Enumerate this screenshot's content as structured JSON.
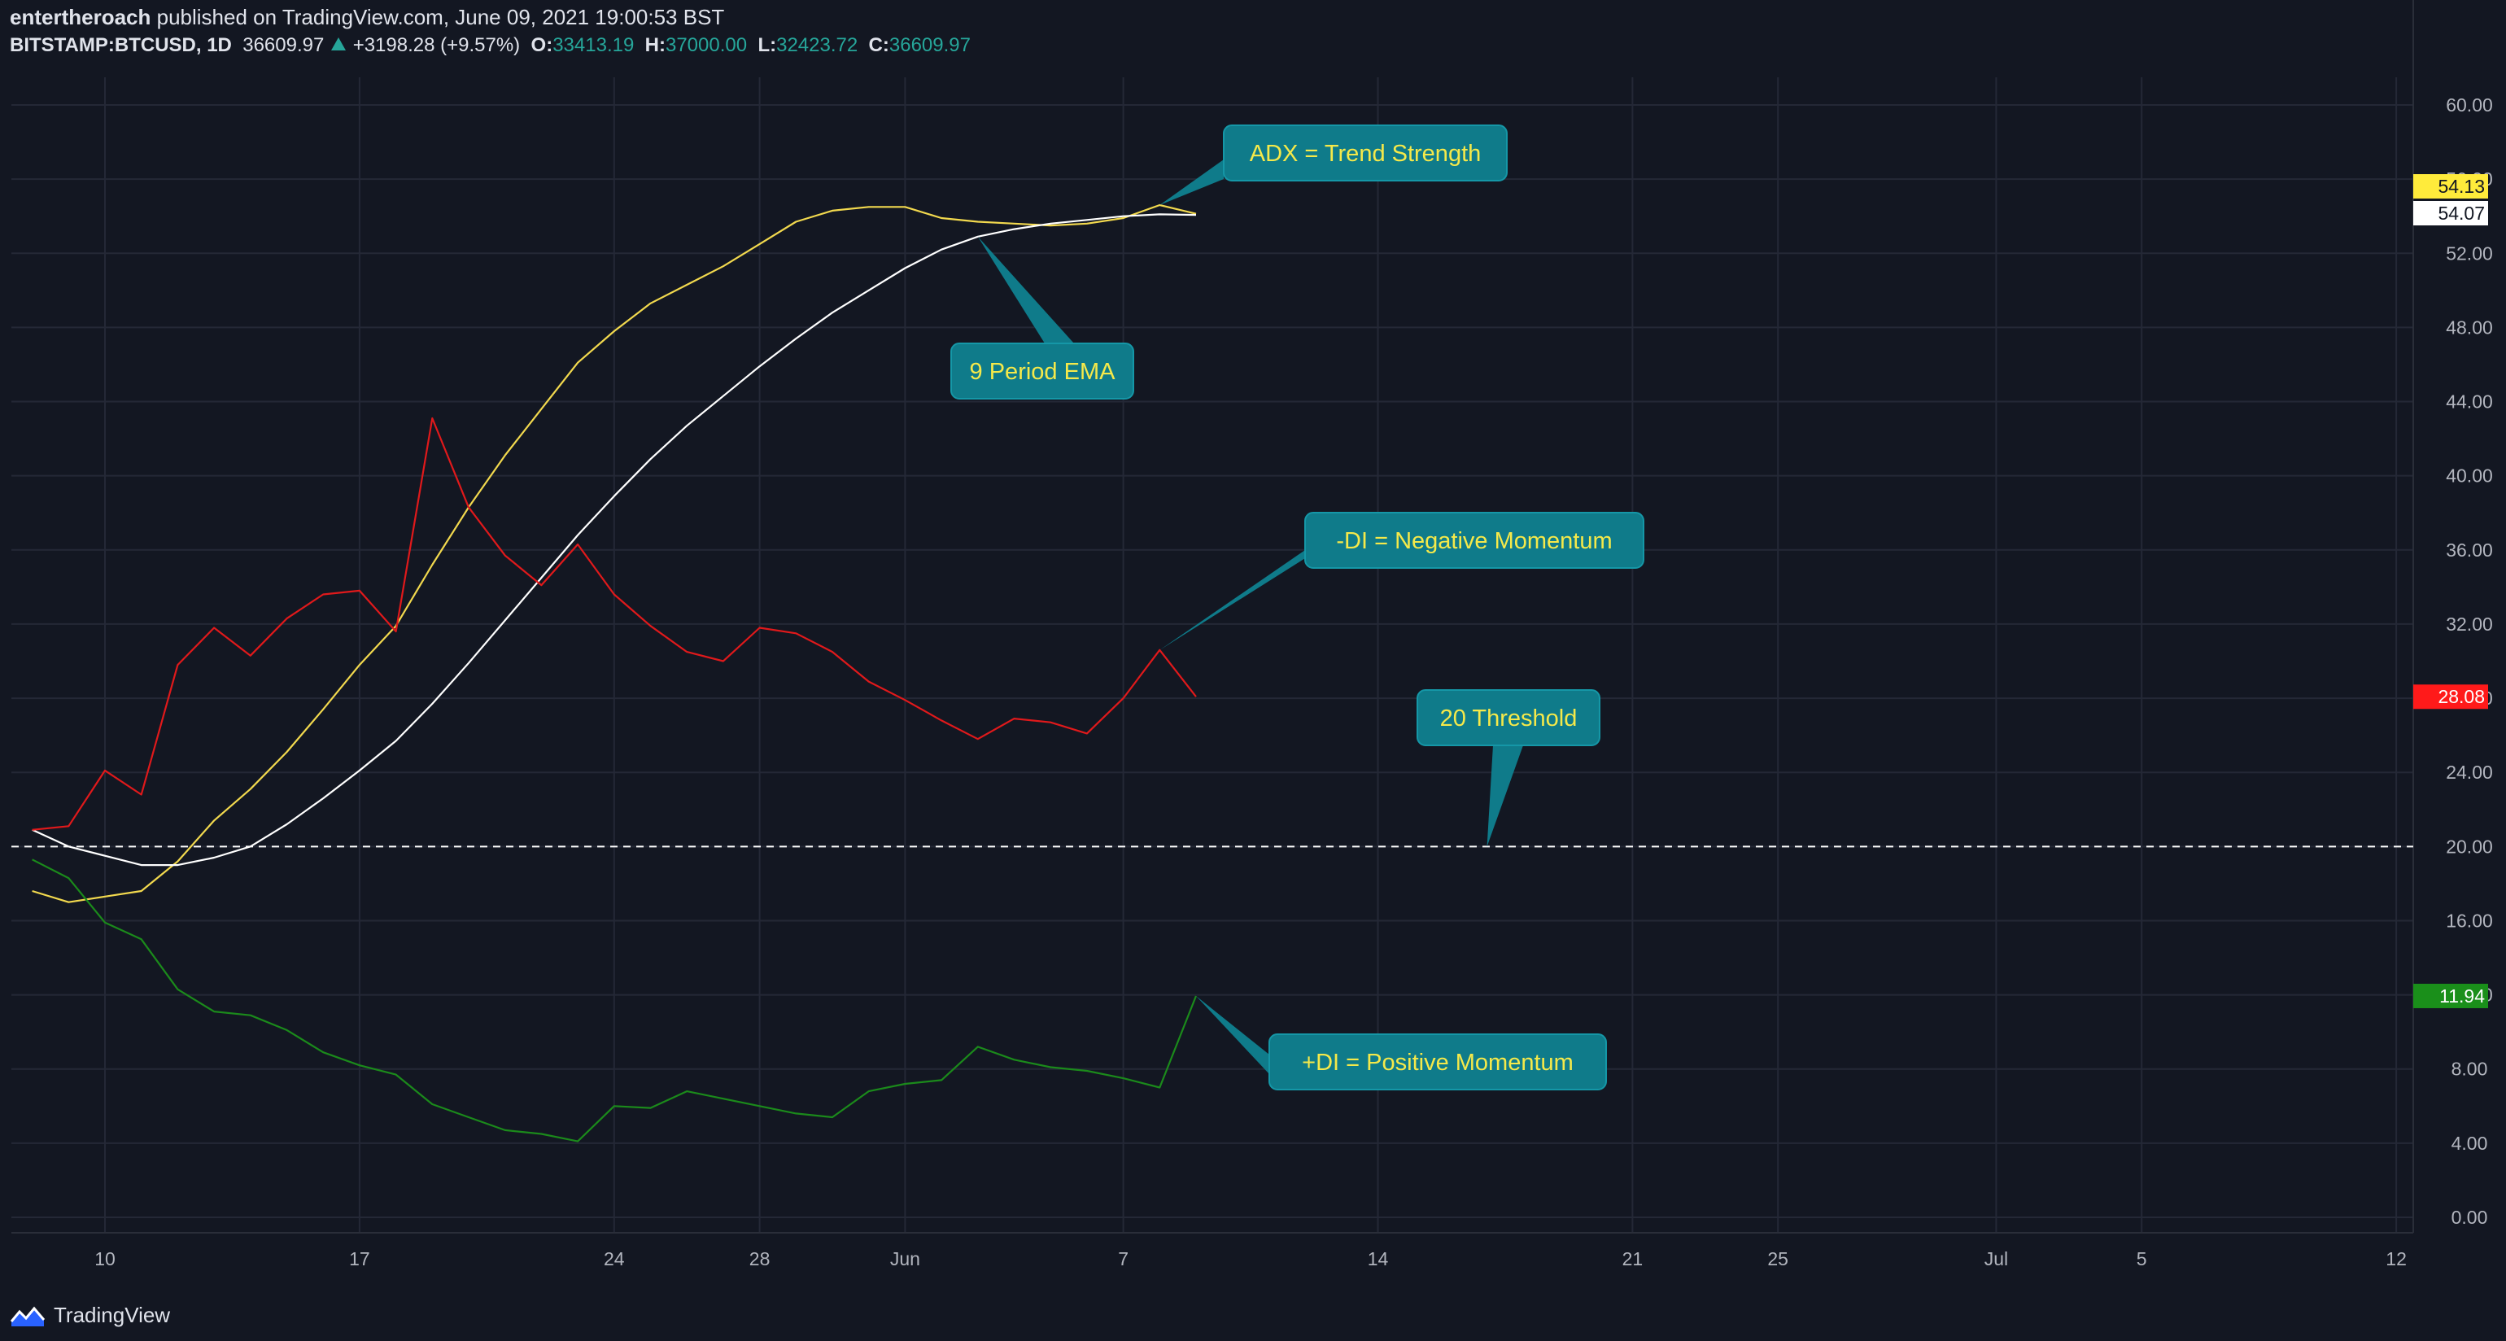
{
  "header": {
    "author": "entertheroach",
    "published_text": "published on TradingView.com, June 09, 2021 19:00:53 BST",
    "symbol": "BITSTAMP:BTCUSD, 1D",
    "last": "36609.97",
    "change": "+3198.28 (+9.57%)",
    "o_label": "O:",
    "o_value": "33413.19",
    "h_label": "H:",
    "h_value": "37000.00",
    "l_label": "L:",
    "l_value": "32423.72",
    "c_label": "C:",
    "c_value": "36609.97"
  },
  "footer": {
    "brand": "TradingView",
    "logo_icon": "tradingview-logo-icon"
  },
  "colors": {
    "background": "#131722",
    "grid": "#242836",
    "axis_text": "#b2b5be",
    "adx": "#f2d94e",
    "ema": "#ffffff",
    "minus_di": "#e0191b",
    "plus_di": "#1b8a1b",
    "threshold": "#ffffff",
    "callout_bg": "#0f7b8a",
    "callout_text": "#f5e94a",
    "badge_adx": "#ffeb3b",
    "badge_ema": "#ffffff",
    "badge_minus": "#ff1a1a",
    "badge_plus": "#1a8f1a"
  },
  "chart_data": {
    "type": "line",
    "x_tick_labels": [
      "10",
      "17",
      "24",
      "28",
      "Jun",
      "7",
      "14",
      "21",
      "25",
      "Jul",
      "5",
      "12"
    ],
    "x_tick_dates": [
      "2021-05-10",
      "2021-05-17",
      "2021-05-24",
      "2021-05-28",
      "2021-06-01",
      "2021-06-07",
      "2021-06-14",
      "2021-06-21",
      "2021-06-25",
      "2021-07-01",
      "2021-07-05",
      "2021-07-12"
    ],
    "y_tick_labels": [
      "60.00",
      "56.00",
      "52.00",
      "48.00",
      "44.00",
      "40.00",
      "36.00",
      "32.00",
      "28.00",
      "24.00",
      "20.00",
      "16.00",
      "12.00",
      "8.00",
      "4.00",
      "0.00"
    ],
    "ylim": [
      0,
      60
    ],
    "grid": true,
    "x": [
      "2021-05-08",
      "2021-05-09",
      "2021-05-10",
      "2021-05-11",
      "2021-05-12",
      "2021-05-13",
      "2021-05-14",
      "2021-05-15",
      "2021-05-16",
      "2021-05-17",
      "2021-05-18",
      "2021-05-19",
      "2021-05-20",
      "2021-05-21",
      "2021-05-22",
      "2021-05-23",
      "2021-05-24",
      "2021-05-25",
      "2021-05-26",
      "2021-05-27",
      "2021-05-28",
      "2021-05-29",
      "2021-05-30",
      "2021-05-31",
      "2021-06-01",
      "2021-06-02",
      "2021-06-03",
      "2021-06-04",
      "2021-06-05",
      "2021-06-06",
      "2021-06-07",
      "2021-06-08",
      "2021-06-09"
    ],
    "series": [
      {
        "name": "ADX",
        "color": "#f2d94e",
        "values": [
          17.6,
          17.0,
          17.3,
          17.6,
          19.2,
          21.4,
          23.1,
          25.1,
          27.4,
          29.8,
          31.9,
          35.2,
          38.3,
          41.1,
          43.6,
          46.1,
          47.8,
          49.3,
          50.3,
          51.3,
          52.5,
          53.7,
          54.3,
          54.5,
          54.5,
          53.9,
          53.7,
          53.6,
          53.5,
          53.6,
          53.9,
          54.6,
          54.13
        ]
      },
      {
        "name": "9 Period EMA",
        "color": "#ffffff",
        "values": [
          20.9,
          20.0,
          19.5,
          19.0,
          19.0,
          19.4,
          20.0,
          21.2,
          22.6,
          24.1,
          25.7,
          27.7,
          29.9,
          32.2,
          34.5,
          36.8,
          38.9,
          40.9,
          42.7,
          44.3,
          45.9,
          47.4,
          48.8,
          50.0,
          51.2,
          52.2,
          52.9,
          53.3,
          53.6,
          53.8,
          54.0,
          54.1,
          54.07
        ]
      },
      {
        "name": "-DI",
        "color": "#e0191b",
        "values": [
          20.9,
          21.1,
          24.1,
          22.8,
          29.8,
          31.8,
          30.3,
          32.3,
          33.6,
          33.8,
          31.6,
          43.1,
          38.3,
          35.7,
          34.1,
          36.3,
          33.6,
          31.9,
          30.5,
          30.0,
          31.8,
          31.5,
          30.5,
          28.9,
          27.9,
          26.8,
          25.8,
          26.9,
          26.7,
          26.1,
          28.0,
          30.6,
          28.08
        ]
      },
      {
        "name": "+DI",
        "color": "#1b8a1b",
        "values": [
          19.3,
          18.3,
          15.9,
          15.0,
          12.3,
          11.1,
          10.9,
          10.1,
          8.9,
          8.2,
          7.7,
          6.1,
          5.4,
          4.7,
          4.5,
          4.1,
          6.0,
          5.9,
          6.8,
          6.4,
          6.0,
          5.6,
          5.4,
          6.8,
          7.2,
          7.4,
          9.2,
          8.5,
          8.1,
          7.9,
          7.5,
          7.0,
          11.94
        ]
      }
    ],
    "threshold": {
      "value": 20,
      "style": "dashed"
    },
    "last_value_labels": [
      {
        "series": "ADX",
        "text": "54.13"
      },
      {
        "series": "9 Period EMA",
        "text": "54.07"
      },
      {
        "series": "-DI",
        "text": "28.08"
      },
      {
        "series": "+DI",
        "text": "11.94"
      }
    ],
    "annotations": [
      {
        "text": "ADX = Trend Strength"
      },
      {
        "text": "9 Period EMA"
      },
      {
        "text": "-DI = Negative Momentum"
      },
      {
        "text": "20 Threshold"
      },
      {
        "text": "+DI = Positive Momentum"
      }
    ]
  }
}
